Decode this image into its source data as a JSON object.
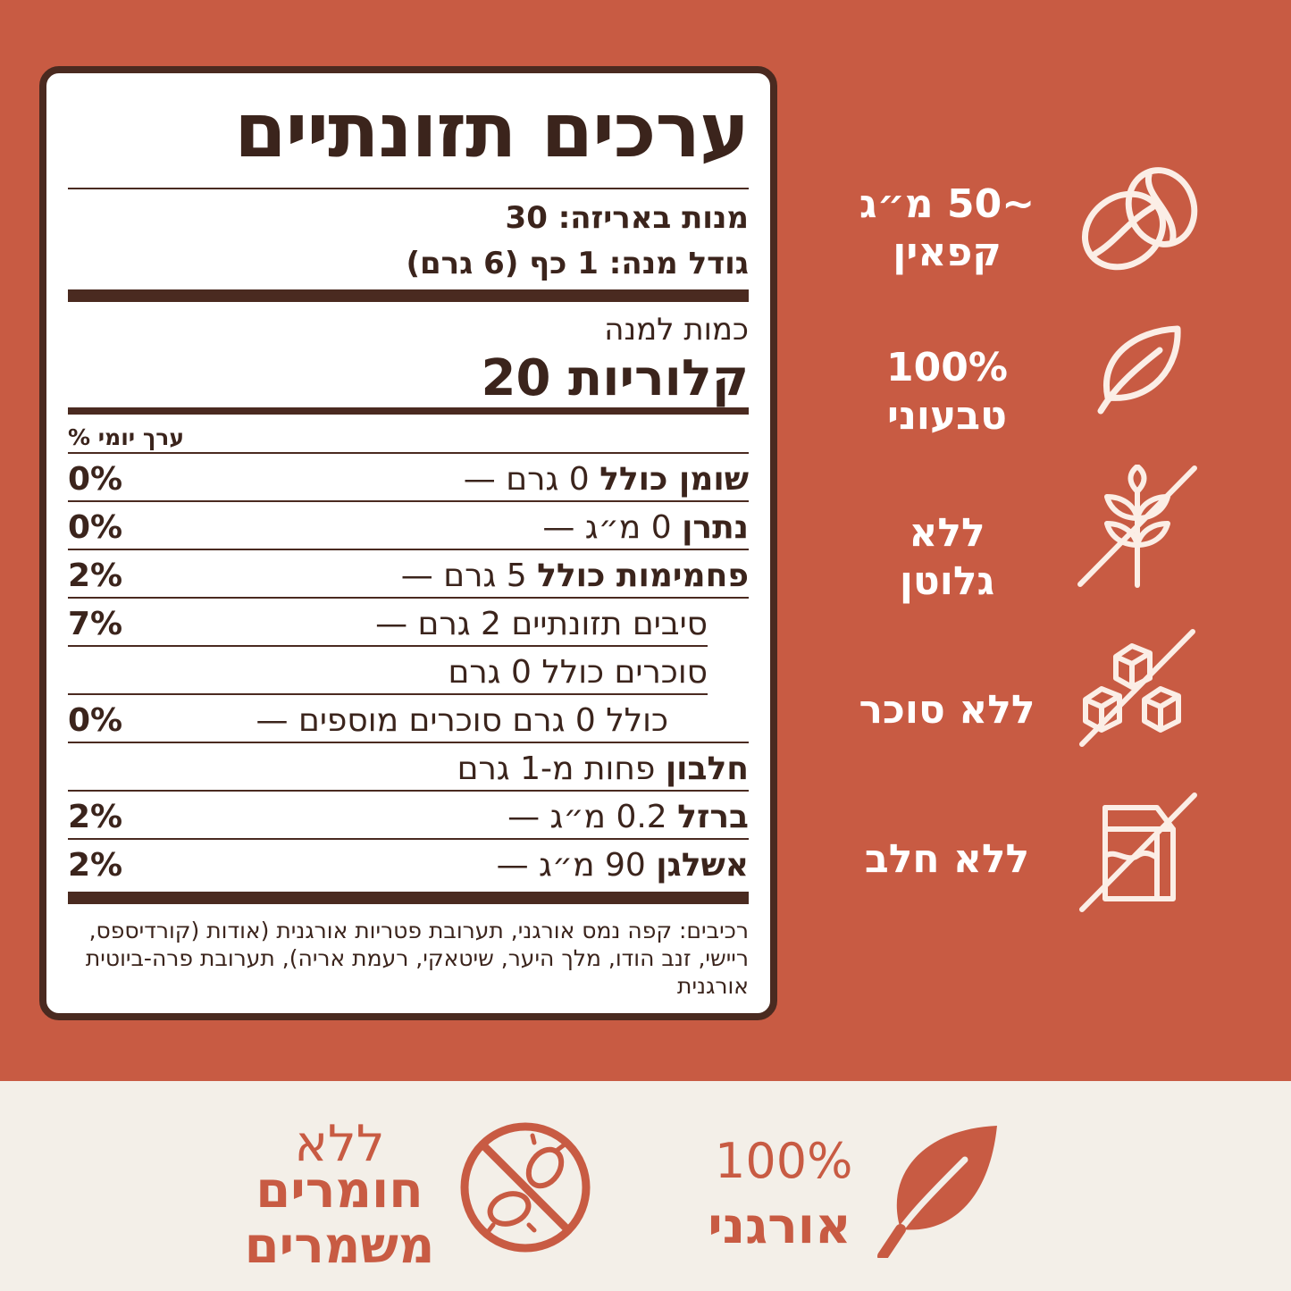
{
  "label": {
    "title": "ערכים תזונתיים",
    "servings_per_package": "מנות באריזה: 30",
    "serving_size": "גודל מנה: 1 כף (6 גרם)",
    "amount_per_serving": "כמות למנה",
    "calories": "קלוריות 20",
    "daily_value_header": "ערך יומי %",
    "rows": [
      {
        "name": "שומן כולל",
        "amount": "0 גרם —",
        "pct": "0%"
      },
      {
        "name": "נתרן",
        "amount": "0 מ״ג —",
        "pct": "0%"
      },
      {
        "name": "פחמימות כולל",
        "amount": "5 גרם —",
        "pct": "2%"
      },
      {
        "name": "",
        "amount": "סיבים תזונתיים 2 גרם —",
        "pct": "7%"
      },
      {
        "name": "",
        "amount": "סוכרים כולל 0 גרם",
        "pct": ""
      },
      {
        "name": "",
        "amount": "כולל 0 גרם סוכרים מוספים —",
        "pct": "0%"
      },
      {
        "name": "חלבון",
        "amount": "פחות מ-1 גרם",
        "pct": ""
      },
      {
        "name": "ברזל",
        "amount": "0.2 מ״ג —",
        "pct": "2%"
      },
      {
        "name": "אשלגן",
        "amount": "90 מ״ג —",
        "pct": "2%"
      }
    ],
    "ingredients": "רכיבים: קפה נמס אורגני, תערובת פטריות אורגנית (אודות (קורדיספס, ריישי, זנב הודו, מלך היער, שיטאקי, רעמת אריה), תערובת פרה-ביוטית אורגנית"
  },
  "features": [
    {
      "line1": "~50 מ״ג",
      "line2": "קפאין",
      "icon": "coffee-bean-icon"
    },
    {
      "line1": "100%",
      "line2": "טבעוני",
      "icon": "leaf-icon"
    },
    {
      "line1": "ללא",
      "line2": "גלוטן",
      "icon": "no-wheat-icon"
    },
    {
      "line1": "ללא סוכר",
      "line2": "",
      "icon": "no-sugar-cubes-icon"
    },
    {
      "line1": "ללא חלב",
      "line2": "",
      "icon": "no-milk-carton-icon"
    }
  ],
  "bottom": {
    "organic_pct": "100%",
    "organic_label": "אורגני",
    "preservatives_line1": "ללא",
    "preservatives_line2": "חומרים",
    "preservatives_line3": "משמרים"
  },
  "colors": {
    "brand": "#c85b43",
    "cream": "#f3efe8",
    "label_border": "#4a2a20"
  }
}
